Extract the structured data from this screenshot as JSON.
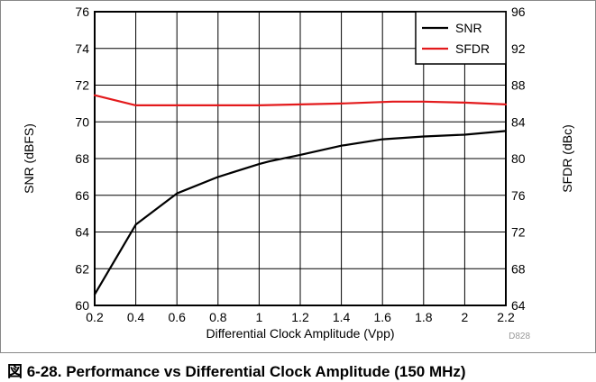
{
  "figure": {
    "caption": "図 6-28. Performance vs Differential Clock Amplitude (150 MHz)"
  },
  "chart_data": {
    "type": "line",
    "xlabel": "Differential Clock Amplitude (Vpp)",
    "ylabel": "SNR (dBFS)",
    "y2label": "SFDR (dBc)",
    "xlim": [
      0.2,
      2.2
    ],
    "ylim": [
      60,
      76
    ],
    "y2lim": [
      64,
      96
    ],
    "xticks": [
      "0.2",
      "0.4",
      "0.6",
      "0.8",
      "1",
      "1.2",
      "1.4",
      "1.6",
      "1.8",
      "2",
      "2.2"
    ],
    "yticks": [
      "60",
      "62",
      "64",
      "66",
      "68",
      "70",
      "72",
      "74",
      "76"
    ],
    "y2ticks": [
      "64",
      "68",
      "72",
      "76",
      "80",
      "84",
      "88",
      "92",
      "96"
    ],
    "grid": true,
    "legend_position": "top-right",
    "code": "D828",
    "series": [
      {
        "name": "SNR",
        "axis": "left",
        "color": "#000000",
        "x": [
          0.2,
          0.4,
          0.6,
          0.8,
          1.0,
          1.05,
          1.2,
          1.4,
          1.6,
          1.8,
          2.0,
          2.2
        ],
        "y": [
          60.6,
          64.4,
          66.1,
          67.0,
          67.7,
          67.85,
          68.2,
          68.7,
          69.05,
          69.2,
          69.3,
          69.5
        ]
      },
      {
        "name": "SFDR",
        "axis": "right",
        "color": "#e31a1c",
        "x": [
          0.2,
          0.4,
          0.6,
          0.8,
          1.0,
          1.2,
          1.4,
          1.65,
          1.8,
          2.0,
          2.2
        ],
        "y": [
          86.9,
          85.8,
          85.8,
          85.8,
          85.8,
          85.9,
          86.0,
          86.2,
          86.2,
          86.1,
          85.9
        ]
      }
    ]
  }
}
